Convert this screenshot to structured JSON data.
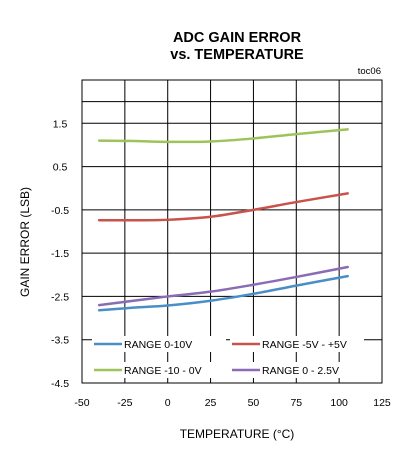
{
  "chart_data": {
    "type": "line",
    "title_line1": "ADC GAIN ERROR",
    "title_line2": "vs. TEMPERATURE",
    "note": "toc06",
    "xlabel": "TEMPERATURE (°C)",
    "ylabel": "GAIN ERROR  (LSB)",
    "xlim": [
      -50,
      125
    ],
    "ylim": [
      -4.5,
      2.5
    ],
    "xticks": [
      -50,
      -25,
      0,
      25,
      50,
      75,
      100,
      125
    ],
    "yticks": [
      -4.5,
      -3.5,
      -2.5,
      -1.5,
      -0.5,
      0.5,
      1.5
    ],
    "ytick_labels": [
      "-4.5",
      "-3.5",
      "-2.5",
      "-1.5",
      "-0.5",
      "0.5",
      "1.5"
    ],
    "grid": true,
    "legend_position": "bottom-inside",
    "series": [
      {
        "name": "RANGE 0-10V",
        "color": "#4a8ec8",
        "x": [
          -40,
          -20,
          0,
          25,
          50,
          75,
          105
        ],
        "y": [
          -2.82,
          -2.76,
          -2.71,
          -2.6,
          -2.44,
          -2.25,
          -2.03
        ]
      },
      {
        "name": "RANGE -5V - +5V",
        "color": "#c9524a",
        "x": [
          -40,
          -20,
          0,
          25,
          50,
          75,
          105
        ],
        "y": [
          -0.74,
          -0.74,
          -0.73,
          -0.66,
          -0.5,
          -0.32,
          -0.12
        ]
      },
      {
        "name": "RANGE -10 - 0V",
        "color": "#9cc45a",
        "x": [
          -40,
          -20,
          0,
          25,
          50,
          75,
          105
        ],
        "y": [
          1.1,
          1.09,
          1.07,
          1.08,
          1.15,
          1.25,
          1.36
        ]
      },
      {
        "name": "RANGE 0 - 2.5V",
        "color": "#8a6bb5",
        "x": [
          -40,
          -20,
          0,
          25,
          50,
          75,
          105
        ],
        "y": [
          -2.7,
          -2.6,
          -2.5,
          -2.39,
          -2.23,
          -2.05,
          -1.82
        ]
      }
    ]
  }
}
